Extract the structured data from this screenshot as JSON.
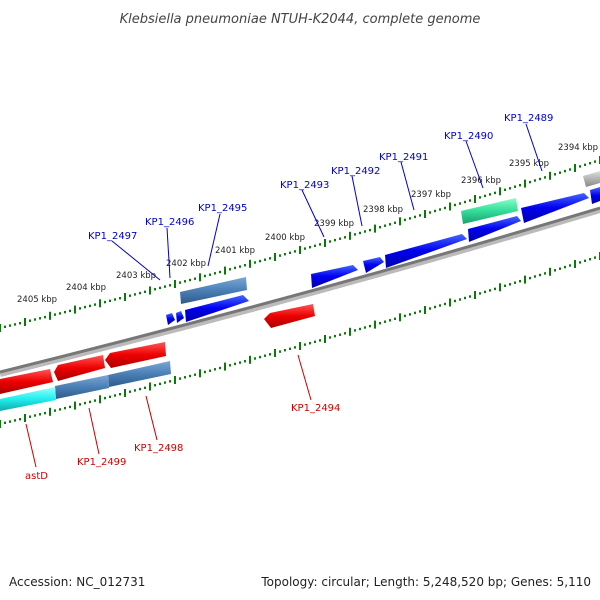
{
  "title": "Klebsiella pneumoniae NTUH-K2044, complete genome",
  "footer": {
    "accession": "Accession: NC_012731",
    "summary": "Topology: circular; Length: 5,248,520 bp; Genes: 5,110"
  },
  "scale_labels": [
    "2394 kbp",
    "2395 kbp",
    "2396 kbp",
    "2397 kbp",
    "2398 kbp",
    "2399 kbp",
    "2400 kbp",
    "2401 kbp",
    "2402 kbp",
    "2403 kbp",
    "2404 kbp",
    "2405 kbp"
  ],
  "gene_labels": {
    "top": [
      "KP1_2489",
      "KP1_2490",
      "KP1_2491",
      "KP1_2492",
      "KP1_2493",
      "KP1_2495",
      "KP1_2496",
      "KP1_2497"
    ],
    "bottom": [
      "KP1_2494",
      "KP1_2498",
      "KP1_2499",
      "astD"
    ]
  },
  "colors": {
    "forward_cds": "#0000ee",
    "reverse_cds": "#ee0000",
    "forward_label": "#0000cc",
    "reverse_label": "#cc0000",
    "steelblue_feature": "#4a7fb5",
    "green_feature": "#33dd99",
    "cyan_feature": "#22eeee",
    "gray_feature": "#aaaaaa",
    "tick_green": "#0a7a0a",
    "backbone": "#777777"
  }
}
